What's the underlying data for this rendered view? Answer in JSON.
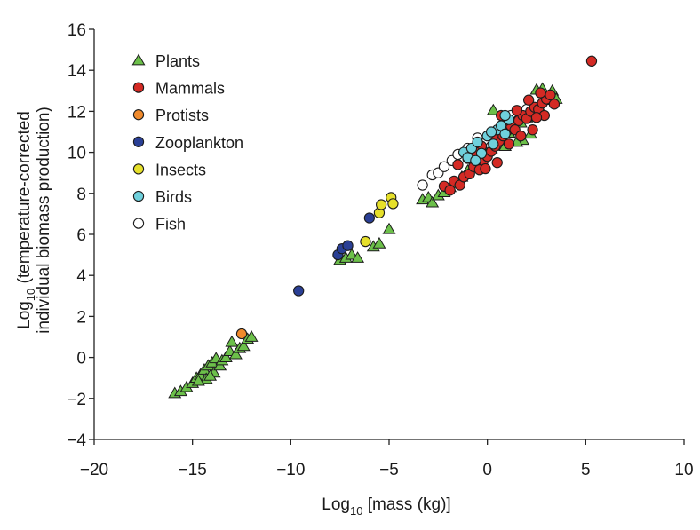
{
  "chart_data": {
    "type": "scatter",
    "title": "",
    "xlabel": "Log10 [mass (kg)]",
    "xlabel_parts": {
      "prefix": "Log",
      "sub": "10",
      "suffix": " [mass (kg)]"
    },
    "ylabel": "Log10 (temperature-corrected individual biomass production)",
    "ylabel_parts": {
      "prefix": "Log",
      "sub": "10",
      "suffix": " (temperature-corrected",
      "line2": "individual biomass production)"
    },
    "xlim": [
      -20,
      10
    ],
    "ylim": [
      -4,
      16
    ],
    "xticks": [
      -20,
      -15,
      -10,
      -5,
      0,
      5,
      10
    ],
    "xtick_labels": [
      "−20",
      "−15",
      "−10",
      "−5",
      "0",
      "5",
      "10"
    ],
    "yticks": [
      -4,
      -2,
      0,
      2,
      4,
      6,
      8,
      10,
      12,
      14,
      16
    ],
    "ytick_labels": [
      "−4",
      "−2",
      "0",
      "2",
      "4",
      "6",
      "8",
      "10",
      "12",
      "14",
      "16"
    ],
    "grid": false,
    "legend_position": "top-left",
    "series": [
      {
        "name": "Plants",
        "marker": "triangle",
        "color": "#6cc04a",
        "points": [
          [
            -15.9,
            -1.75
          ],
          [
            -15.6,
            -1.65
          ],
          [
            -15.3,
            -1.45
          ],
          [
            -15.0,
            -1.25
          ],
          [
            -14.8,
            -1.0
          ],
          [
            -14.6,
            -0.85
          ],
          [
            -14.4,
            -0.6
          ],
          [
            -14.3,
            -1.05
          ],
          [
            -14.2,
            -0.4
          ],
          [
            -14.0,
            -0.25
          ],
          [
            -13.9,
            -0.75
          ],
          [
            -13.8,
            -0.05
          ],
          [
            -13.6,
            -0.4
          ],
          [
            -13.5,
            -0.15
          ],
          [
            -13.3,
            0.0
          ],
          [
            -13.1,
            0.3
          ],
          [
            -13.0,
            0.75
          ],
          [
            -12.8,
            0.15
          ],
          [
            -12.6,
            0.45
          ],
          [
            -12.4,
            0.55
          ],
          [
            -12.2,
            0.9
          ],
          [
            -12.0,
            1.0
          ],
          [
            -14.7,
            -1.15
          ],
          [
            -14.1,
            -0.9
          ],
          [
            -7.5,
            4.75
          ],
          [
            -7.2,
            4.85
          ],
          [
            -6.9,
            5.0
          ],
          [
            -6.6,
            4.85
          ],
          [
            -5.8,
            5.4
          ],
          [
            -5.5,
            5.55
          ],
          [
            -5.0,
            6.25
          ],
          [
            -3.3,
            7.7
          ],
          [
            -3.0,
            7.8
          ],
          [
            -2.8,
            7.55
          ],
          [
            -2.5,
            7.9
          ],
          [
            -2.2,
            8.05
          ],
          [
            -1.9,
            8.3
          ],
          [
            -1.6,
            8.5
          ],
          [
            -1.3,
            8.8
          ],
          [
            -1.0,
            9.1
          ],
          [
            -0.7,
            9.35
          ],
          [
            -0.4,
            9.6
          ],
          [
            -0.1,
            9.9
          ],
          [
            0.2,
            10.2
          ],
          [
            0.5,
            10.5
          ],
          [
            0.8,
            10.7
          ],
          [
            1.1,
            10.95
          ],
          [
            1.4,
            11.2
          ],
          [
            1.7,
            11.45
          ],
          [
            2.0,
            11.7
          ],
          [
            2.3,
            12.0
          ],
          [
            2.6,
            12.25
          ],
          [
            2.9,
            12.55
          ],
          [
            3.1,
            12.75
          ],
          [
            3.3,
            13.0
          ],
          [
            2.5,
            13.05
          ],
          [
            2.8,
            13.1
          ],
          [
            3.5,
            12.6
          ],
          [
            1.0,
            11.3
          ],
          [
            1.8,
            10.6
          ],
          [
            2.2,
            10.9
          ],
          [
            0.3,
            12.05
          ],
          [
            0.9,
            10.3
          ],
          [
            1.5,
            10.5
          ],
          [
            -0.5,
            10.1
          ]
        ]
      },
      {
        "name": "Mammals",
        "marker": "circle",
        "color": "#d42a24",
        "points": [
          [
            5.3,
            14.45
          ],
          [
            -2.2,
            8.35
          ],
          [
            -1.9,
            8.15
          ],
          [
            -1.7,
            8.6
          ],
          [
            -1.4,
            8.4
          ],
          [
            -1.2,
            8.8
          ],
          [
            -0.9,
            8.95
          ],
          [
            -0.7,
            9.3
          ],
          [
            -0.4,
            9.15
          ],
          [
            -0.2,
            9.6
          ],
          [
            0.0,
            9.8
          ],
          [
            0.2,
            10.05
          ],
          [
            0.4,
            10.3
          ],
          [
            0.6,
            10.55
          ],
          [
            0.8,
            10.8
          ],
          [
            1.0,
            11.05
          ],
          [
            1.2,
            11.3
          ],
          [
            1.4,
            11.1
          ],
          [
            1.6,
            11.55
          ],
          [
            1.8,
            11.8
          ],
          [
            2.0,
            11.65
          ],
          [
            2.2,
            12.0
          ],
          [
            2.4,
            12.2
          ],
          [
            2.6,
            12.1
          ],
          [
            2.8,
            12.4
          ],
          [
            3.0,
            12.6
          ],
          [
            3.2,
            12.8
          ],
          [
            3.4,
            12.35
          ],
          [
            -0.3,
            10.3
          ],
          [
            0.3,
            10.8
          ],
          [
            0.9,
            11.55
          ],
          [
            1.5,
            12.05
          ],
          [
            2.1,
            12.55
          ],
          [
            2.7,
            12.9
          ],
          [
            -1.0,
            9.7
          ],
          [
            -0.6,
            10.0
          ],
          [
            1.1,
            10.4
          ],
          [
            2.3,
            11.1
          ],
          [
            0.5,
            9.5
          ],
          [
            -0.1,
            9.2
          ],
          [
            1.7,
            10.8
          ],
          [
            2.9,
            11.8
          ],
          [
            2.5,
            11.7
          ],
          [
            0.7,
            11.8
          ],
          [
            -1.5,
            9.4
          ]
        ]
      },
      {
        "name": "Protists",
        "marker": "circle",
        "color": "#f08a2c",
        "points": [
          [
            -12.5,
            1.15
          ]
        ]
      },
      {
        "name": "Zooplankton",
        "marker": "circle",
        "color": "#2a3f95",
        "points": [
          [
            -9.6,
            3.25
          ],
          [
            -7.6,
            5.0
          ],
          [
            -7.4,
            5.3
          ],
          [
            -7.1,
            5.45
          ],
          [
            -6.0,
            6.8
          ]
        ]
      },
      {
        "name": "Insects",
        "marker": "circle",
        "color": "#e6e02a",
        "points": [
          [
            -6.2,
            5.65
          ],
          [
            -5.5,
            7.05
          ],
          [
            -5.4,
            7.45
          ],
          [
            -4.9,
            7.8
          ],
          [
            -4.8,
            7.5
          ]
        ]
      },
      {
        "name": "Birds",
        "marker": "circle",
        "color": "#6fd0dc",
        "points": [
          [
            -1.2,
            10.0
          ],
          [
            -1.0,
            9.75
          ],
          [
            -0.8,
            10.2
          ],
          [
            -0.5,
            10.5
          ],
          [
            -0.3,
            9.95
          ],
          [
            0.0,
            10.8
          ],
          [
            0.3,
            10.4
          ],
          [
            0.5,
            11.1
          ],
          [
            0.7,
            11.3
          ],
          [
            0.9,
            10.9
          ],
          [
            1.1,
            11.6
          ],
          [
            -0.6,
            9.6
          ],
          [
            0.2,
            11.0
          ],
          [
            0.9,
            11.8
          ]
        ]
      },
      {
        "name": "Fish",
        "marker": "circle",
        "color": "#ffffff",
        "points": [
          [
            -3.3,
            8.4
          ],
          [
            -2.8,
            8.9
          ],
          [
            -2.5,
            9.0
          ],
          [
            -2.2,
            9.3
          ],
          [
            -1.8,
            9.6
          ],
          [
            -1.5,
            9.9
          ],
          [
            -1.0,
            10.2
          ],
          [
            -0.5,
            10.7
          ],
          [
            0.2,
            10.3
          ],
          [
            1.2,
            11.8
          ],
          [
            1.6,
            11.6
          ],
          [
            2.0,
            12.1
          ]
        ]
      }
    ]
  }
}
